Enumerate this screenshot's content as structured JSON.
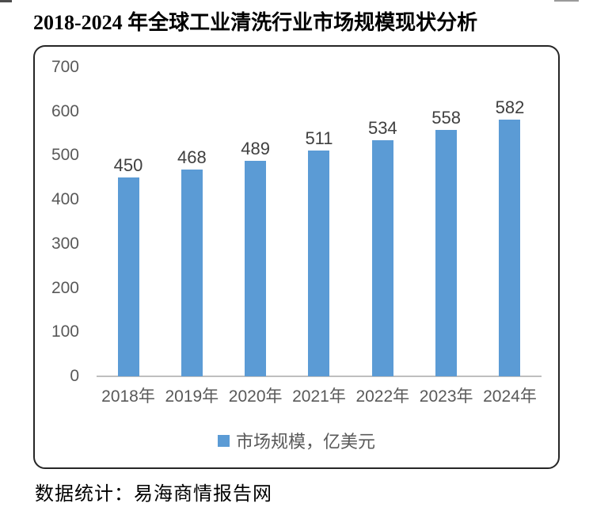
{
  "page": {
    "title": "2018-2024 年全球工业清洗行业市场规模现状分析",
    "source_note": "数据统计：易海商情报告网"
  },
  "chart_data": {
    "type": "bar",
    "title": "",
    "xlabel": "",
    "ylabel": "",
    "categories": [
      "2018年",
      "2019年",
      "2020年",
      "2021年",
      "2022年",
      "2023年",
      "2024年"
    ],
    "values": [
      450,
      468,
      489,
      511,
      534,
      558,
      582
    ],
    "series_name": "市场规模，亿美元",
    "ylim": [
      0,
      700
    ],
    "yticks": [
      0,
      100,
      200,
      300,
      400,
      500,
      600,
      700
    ],
    "grid": false,
    "data_labels": true,
    "legend_position": "bottom",
    "bar_color": "#5b9bd5",
    "axis_label_color": "#595959",
    "data_label_color": "#3f3f3f",
    "axis_line_color": "#bfbfbf",
    "frame_border_color": "#262626"
  }
}
